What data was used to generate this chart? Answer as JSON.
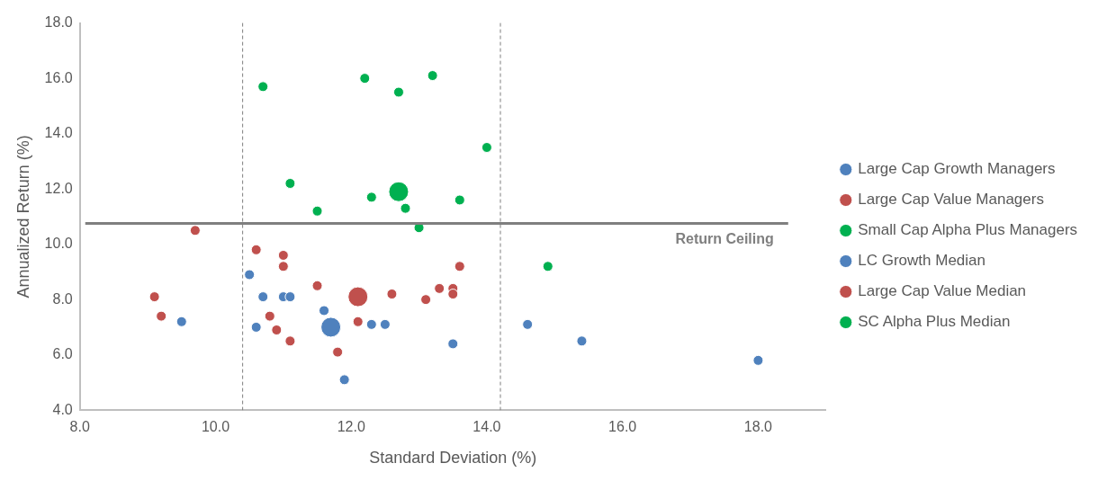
{
  "chart_data": {
    "type": "scatter",
    "xlabel": "Standard Deviation (%)",
    "ylabel": "Annualized Return (%)",
    "xlim": [
      8,
      19
    ],
    "xticks": [
      {
        "value": 8,
        "label": "8.0"
      },
      {
        "value": 10,
        "label": "10.0"
      },
      {
        "value": 12,
        "label": "12.0"
      },
      {
        "value": 14,
        "label": "14.0"
      },
      {
        "value": 16,
        "label": "16.0"
      },
      {
        "value": 18,
        "label": "18.0"
      }
    ],
    "ylim": [
      4,
      18
    ],
    "yticks": [
      {
        "value": 4,
        "label": "4.0"
      },
      {
        "value": 6,
        "label": "6.0"
      },
      {
        "value": 8,
        "label": "8.0"
      },
      {
        "value": 10,
        "label": "10.0"
      },
      {
        "value": 12,
        "label": "12.0"
      },
      {
        "value": 14,
        "label": "14.0"
      },
      {
        "value": 16,
        "label": "16.0"
      },
      {
        "value": 18,
        "label": "18.0"
      }
    ],
    "grid": false,
    "legend": "right",
    "marker": "circle",
    "series": [
      {
        "name": "Large Cap Growth Managers",
        "color": "#4f81bd",
        "x": [
          9.5,
          10.5,
          10.7,
          11.0,
          11.1,
          11.6,
          10.6,
          12.3,
          12.5,
          13.5,
          11.9,
          14.6,
          15.4,
          18.0
        ],
        "values": [
          7.2,
          8.9,
          8.1,
          8.1,
          8.1,
          7.6,
          7.0,
          7.1,
          7.1,
          6.4,
          5.1,
          7.1,
          6.5,
          5.8
        ]
      },
      {
        "name": "Large Cap Value Managers",
        "color": "#c0504d",
        "x": [
          9.7,
          10.6,
          11.0,
          11.0,
          11.5,
          12.6,
          13.1,
          13.3,
          13.5,
          13.5,
          13.6,
          9.1,
          9.2,
          10.8,
          10.9,
          11.1,
          12.1,
          11.8
        ],
        "values": [
          10.5,
          9.8,
          9.6,
          9.2,
          8.5,
          8.2,
          8.0,
          8.4,
          8.4,
          8.2,
          9.2,
          8.1,
          7.4,
          7.4,
          6.9,
          6.5,
          7.2,
          6.1
        ]
      },
      {
        "name": "Small Cap Alpha Plus Managers",
        "color": "#00b050",
        "x": [
          10.7,
          12.2,
          12.7,
          13.2,
          14.0,
          11.1,
          12.3,
          13.6,
          11.5,
          12.8,
          13.0,
          14.9
        ],
        "values": [
          15.7,
          16.0,
          15.5,
          16.1,
          13.5,
          12.2,
          11.7,
          11.6,
          11.2,
          11.3,
          10.6,
          9.2
        ]
      },
      {
        "name": "LC Growth Median",
        "color": "#4f81bd",
        "x": [
          11.7
        ],
        "values": [
          7.0
        ]
      },
      {
        "name": "Large Cap Value Median",
        "color": "#c0504d",
        "x": [
          12.1
        ],
        "values": [
          8.1
        ]
      },
      {
        "name": "SC Alpha Plus Median",
        "color": "#00b050",
        "x": [
          12.7
        ],
        "values": [
          11.9
        ]
      }
    ],
    "ref_lines": [
      {
        "axis": "x",
        "value": 10.4,
        "color": "#7f7f7f",
        "line_style": "dashed"
      },
      {
        "axis": "x",
        "value": 14.2,
        "color": "#7f7f7f",
        "line_style": "dashed"
      },
      {
        "axis": "y",
        "value": 10.75,
        "label": "Return Ceiling",
        "color": "#7f7f7f",
        "line_style": "solid"
      }
    ]
  }
}
